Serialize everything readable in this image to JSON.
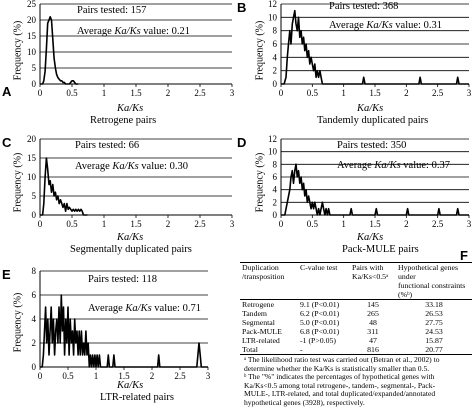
{
  "panels": [
    {
      "label": "A",
      "caption": "Retrogene pairs",
      "pairs": "Pairs tested: 157",
      "avg_prefix": "Average ",
      "avg_italic": "Ka/Ks",
      "avg_suffix": " value: 0.21"
    },
    {
      "label": "B",
      "caption": "Tandemly duplicated pairs",
      "pairs": "Pairs tested: 368",
      "avg_prefix": "Average ",
      "avg_italic": "Ka/Ks",
      "avg_suffix": " value: 0.31"
    },
    {
      "label": "C",
      "caption": "Segmentally duplicated pairs",
      "pairs": "Pairs tested: 66",
      "avg_prefix": "Average ",
      "avg_italic": "Ka/Ks",
      "avg_suffix": " value: 0.30"
    },
    {
      "label": "D",
      "caption": "Pack-MULE pairs",
      "pairs": "Pairs tested: 350",
      "avg_prefix": "Average ",
      "avg_italic": "Ka/Ks",
      "avg_suffix": " value: 0.37"
    },
    {
      "label": "E",
      "caption": "LTR-related pairs",
      "pairs": "Pairs tested: 118",
      "avg_prefix": "Average ",
      "avg_italic": "Ka/Ks",
      "avg_suffix": " value: 0.71"
    }
  ],
  "ylabel": "Frequency (%)",
  "xlabel": "Ka/Ks",
  "chart_data": [
    {
      "type": "line",
      "panel": "A",
      "ylim": [
        0,
        25
      ],
      "xlim": [
        0,
        3
      ],
      "yticks": [
        "0",
        "5",
        "10",
        "15",
        "20",
        "25"
      ],
      "xticks": [
        "0",
        "0.5",
        "1",
        "1.5",
        "2",
        "2.5",
        "3"
      ],
      "x": [
        0.0,
        0.04,
        0.06,
        0.08,
        0.1,
        0.12,
        0.14,
        0.16,
        0.18,
        0.2,
        0.22,
        0.24,
        0.26,
        0.28,
        0.3,
        0.32,
        0.34,
        0.36,
        0.38,
        0.4,
        0.42,
        0.44,
        0.46,
        0.48,
        0.5,
        0.52,
        0.54,
        0.56,
        0.58,
        0.6
      ],
      "y": [
        0,
        0,
        1,
        4,
        11,
        19,
        20,
        21,
        20,
        14,
        8,
        5,
        3,
        2,
        1.5,
        1,
        1,
        0.5,
        0.5,
        0,
        0,
        0,
        0,
        0.5,
        1,
        1,
        0.5,
        0,
        0,
        0
      ]
    },
    {
      "type": "line",
      "panel": "B",
      "ylim": [
        0,
        12
      ],
      "xlim": [
        0,
        3
      ],
      "yticks": [
        "0",
        "2",
        "4",
        "6",
        "8",
        "10",
        "12"
      ],
      "xticks": [
        "0",
        "0.5",
        "1",
        "1.5",
        "2",
        "2.5",
        "3"
      ],
      "x": [
        0.0,
        0.05,
        0.08,
        0.1,
        0.12,
        0.14,
        0.16,
        0.18,
        0.2,
        0.22,
        0.24,
        0.26,
        0.28,
        0.3,
        0.32,
        0.34,
        0.36,
        0.38,
        0.4,
        0.42,
        0.44,
        0.46,
        0.48,
        0.5,
        0.52,
        0.54,
        0.56,
        0.58,
        0.6,
        0.62,
        0.64,
        0.66,
        0.68,
        0.7,
        1.3,
        1.32,
        1.34,
        2.2,
        2.22,
        2.24,
        2.8,
        2.82,
        2.84,
        3.0
      ],
      "y": [
        0,
        0,
        1,
        4,
        6,
        8,
        6,
        9,
        10,
        11,
        9,
        8,
        10,
        7,
        8,
        6,
        7,
        5,
        6,
        4,
        5,
        3,
        4,
        3,
        2,
        3,
        1,
        2,
        1,
        2,
        1,
        0,
        0,
        0,
        0,
        1,
        0,
        0,
        1,
        0,
        0,
        1,
        0,
        0
      ]
    },
    {
      "type": "line",
      "panel": "C",
      "ylim": [
        0,
        20
      ],
      "xlim": [
        0,
        3
      ],
      "yticks": [
        "0",
        "5",
        "10",
        "15",
        "20"
      ],
      "xticks": [
        "0",
        "0.5",
        "1",
        "1.5",
        "2",
        "2.5",
        "3"
      ],
      "x": [
        0.0,
        0.04,
        0.06,
        0.08,
        0.1,
        0.12,
        0.14,
        0.16,
        0.18,
        0.2,
        0.22,
        0.24,
        0.26,
        0.28,
        0.3,
        0.32,
        0.34,
        0.36,
        0.38,
        0.4,
        0.42,
        0.44,
        0.46,
        0.48,
        0.5,
        0.52,
        0.54,
        0.56,
        0.58,
        0.6,
        0.62,
        0.64,
        0.66,
        0.68,
        0.7,
        0.72,
        0.74
      ],
      "y": [
        0,
        0,
        3,
        10,
        15,
        12,
        8,
        9,
        6,
        8,
        5,
        6,
        4,
        5,
        3,
        4,
        3,
        2,
        3,
        1,
        3,
        1.5,
        2,
        1.5,
        1,
        1.5,
        1,
        1.5,
        1,
        1.5,
        1,
        1.5,
        1,
        0,
        0,
        0,
        0
      ]
    },
    {
      "type": "line",
      "panel": "D",
      "ylim": [
        0,
        12
      ],
      "xlim": [
        0,
        3
      ],
      "yticks": [
        "0",
        "2",
        "4",
        "6",
        "8",
        "10",
        "12"
      ],
      "xticks": [
        "0",
        "0.5",
        "1",
        "1.5",
        "2",
        "2.5",
        "3"
      ],
      "x": [
        0.0,
        0.06,
        0.1,
        0.14,
        0.16,
        0.18,
        0.2,
        0.22,
        0.24,
        0.26,
        0.28,
        0.3,
        0.32,
        0.34,
        0.36,
        0.38,
        0.4,
        0.42,
        0.44,
        0.46,
        0.48,
        0.5,
        0.52,
        0.54,
        0.56,
        0.58,
        0.6,
        0.62,
        0.64,
        0.66,
        0.68,
        0.7,
        0.72,
        0.74,
        0.76,
        0.78,
        0.8,
        1.1,
        1.12,
        1.14,
        1.5,
        1.52,
        1.54,
        2.0,
        2.02,
        2.04,
        2.5,
        2.52,
        2.54,
        2.8,
        2.82,
        2.84,
        3.0
      ],
      "y": [
        0,
        0,
        2,
        4,
        6,
        7,
        5,
        7,
        8,
        6,
        7,
        5,
        6,
        4,
        5,
        3,
        4,
        2,
        3,
        2,
        1,
        2,
        1,
        2,
        1,
        0,
        1,
        0,
        1,
        2,
        1,
        0,
        1,
        0,
        1,
        0,
        0,
        0,
        1,
        0,
        0,
        1,
        0,
        0,
        1,
        0,
        0,
        1,
        0,
        0,
        1,
        0,
        0
      ]
    },
    {
      "type": "line",
      "panel": "E",
      "ylim": [
        0,
        8
      ],
      "xlim": [
        0,
        3
      ],
      "yticks": [
        "0",
        "2",
        "4",
        "6",
        "8"
      ],
      "xticks": [
        "0",
        "0.5",
        "1",
        "1.5",
        "2",
        "2.5",
        "3"
      ],
      "x": [
        0.0,
        0.04,
        0.06,
        0.08,
        0.1,
        0.12,
        0.14,
        0.16,
        0.18,
        0.2,
        0.22,
        0.24,
        0.26,
        0.28,
        0.3,
        0.32,
        0.34,
        0.36,
        0.38,
        0.4,
        0.42,
        0.44,
        0.46,
        0.48,
        0.5,
        0.52,
        0.54,
        0.56,
        0.58,
        0.6,
        0.62,
        0.64,
        0.66,
        0.68,
        0.7,
        0.72,
        0.74,
        0.76,
        0.78,
        0.8,
        0.82,
        0.84,
        0.86,
        0.88,
        0.9,
        0.92,
        0.94,
        0.96,
        0.98,
        1.0,
        1.02,
        1.04,
        1.06,
        1.08,
        1.1,
        1.2,
        1.22,
        1.24,
        1.3,
        1.32,
        1.34,
        2.1,
        2.12,
        2.14,
        2.8,
        2.82,
        2.84,
        2.86,
        2.88,
        3.0
      ],
      "y": [
        0,
        0,
        1,
        3,
        5,
        2,
        4,
        1,
        3,
        5,
        2,
        4,
        1,
        3,
        4,
        2,
        5,
        2,
        6,
        3,
        5,
        1,
        4,
        2,
        5,
        1,
        4,
        2,
        3,
        1,
        4,
        2,
        3,
        1,
        3,
        1,
        3,
        1,
        2,
        1,
        3,
        1,
        2,
        0,
        1,
        0,
        1,
        0,
        1,
        0,
        1,
        0,
        1,
        0,
        0,
        0,
        1,
        0,
        0,
        1,
        0,
        0,
        1,
        0,
        0,
        1,
        2,
        1,
        0,
        0
      ]
    },
    {
      "type": "table",
      "panel": "F",
      "columns": [
        "Duplication /transposition",
        "C-value test",
        "Pairs with Ka/Ks<0.5ᵃ",
        "Hypothetical genes under functional constraints (%ᵇ)"
      ],
      "rows": [
        [
          "Retrogene",
          "9.1 (P<0.01)",
          "145",
          "33.18"
        ],
        [
          "Tandem",
          "6.2 (P<0.01)",
          "265",
          "26.53"
        ],
        [
          "Segmental",
          "5.0 (P<0.01)",
          "48",
          "27.75"
        ],
        [
          "Pack-MULE",
          "6.8 (P<0.01)",
          "311",
          "24.53"
        ],
        [
          "LTR-related",
          "-1 (P>0.05)",
          "47",
          "15.87"
        ],
        [
          "Total",
          "-",
          "816",
          "20.77"
        ]
      ],
      "label": "F",
      "header": {
        "c1a": "Duplication",
        "c1b": "/transposition",
        "c2": "C-value test",
        "c3a": "Pairs with",
        "c3b": "Ka/Ks<0.5ᵃ",
        "c4a": "Hypothetical genes under",
        "c4b": "functional constraints (%ᵇ)"
      },
      "notes": [
        "ᵃ The likelihood ratio test was carried out (Betran et al., 2002) to",
        "determine whether the Ka/Ks is statistically smaller than 0.5.",
        "ᵇ The \"%\" indicates the percentages of hypothetical genes with",
        "Ka/Ks<0.5 among total retrogene-, tandem-, segmental-, Pack-",
        "MULE-, LTR-related, and total duplicated/expanded/annotated",
        "hypothetical genes (3928), respectively."
      ]
    }
  ]
}
